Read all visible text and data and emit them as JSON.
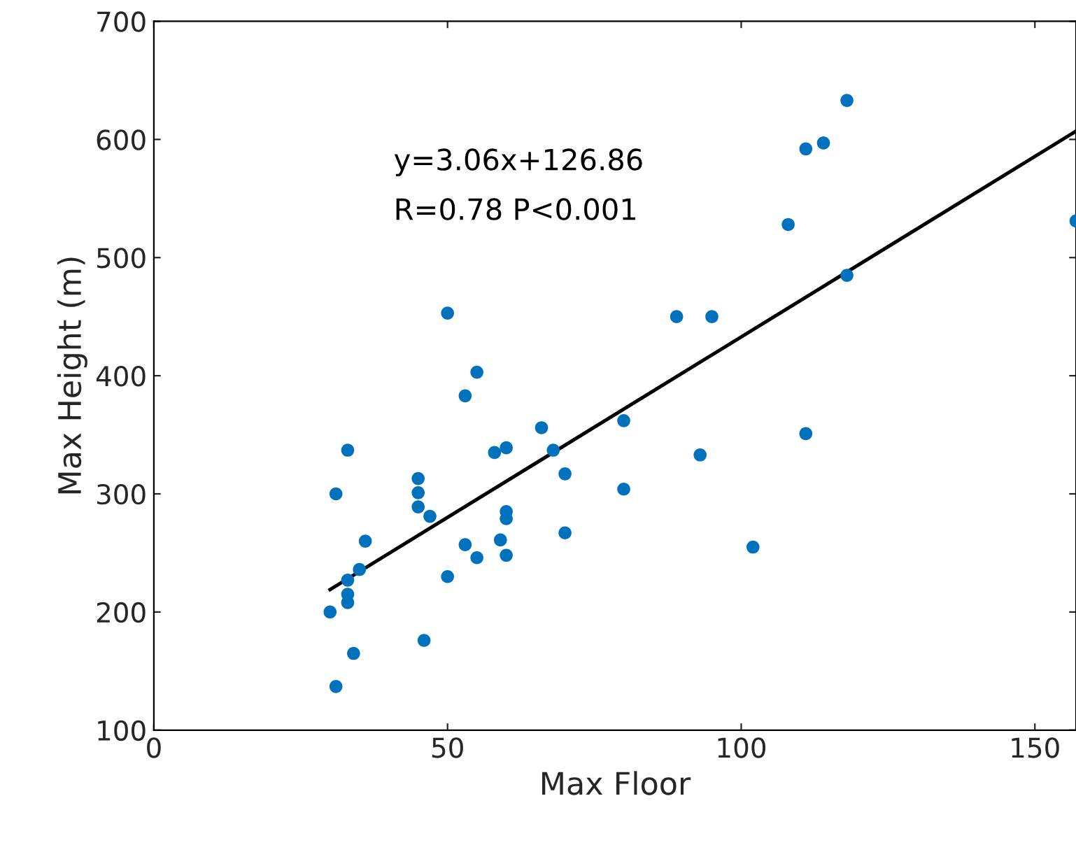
{
  "chart_data": {
    "type": "scatter",
    "xlabel": "Max Floor",
    "ylabel": "Max Height (m)",
    "xlim": [
      0,
      157
    ],
    "ylim": [
      100,
      700
    ],
    "xticks": [
      0,
      50,
      100,
      150
    ],
    "yticks": [
      100,
      200,
      300,
      400,
      500,
      600,
      700
    ],
    "grid": false,
    "legend": false,
    "marker": "circle",
    "annotations": [
      "y=3.06x+126.86",
      "R=0.78 P<0.001"
    ],
    "series": [
      {
        "color": "#0072bd",
        "x": [
          30,
          31,
          31,
          34,
          35,
          36,
          33,
          33,
          33,
          33,
          45,
          45,
          45,
          47,
          46,
          50,
          50,
          53,
          53,
          55,
          55,
          58,
          60,
          59,
          60,
          60,
          60,
          66,
          68,
          70,
          70,
          80,
          80,
          89,
          95,
          93,
          102,
          108,
          111,
          111,
          114,
          118,
          118,
          157
        ],
        "values": [
          200,
          137,
          300,
          165,
          236,
          260,
          337,
          227,
          215,
          208,
          313,
          301,
          289,
          281,
          176,
          453,
          230,
          383,
          257,
          403,
          246,
          335,
          339,
          261,
          285,
          279,
          248,
          356,
          337,
          317,
          267,
          362,
          304,
          450,
          450,
          333,
          255,
          528,
          592,
          351,
          597,
          633,
          485,
          531
        ]
      },
      {
        "type": "line",
        "marker": "none",
        "color": "#000000",
        "line_style": "solid",
        "x": [
          30,
          157
        ],
        "values": [
          219,
          607
        ]
      }
    ]
  }
}
